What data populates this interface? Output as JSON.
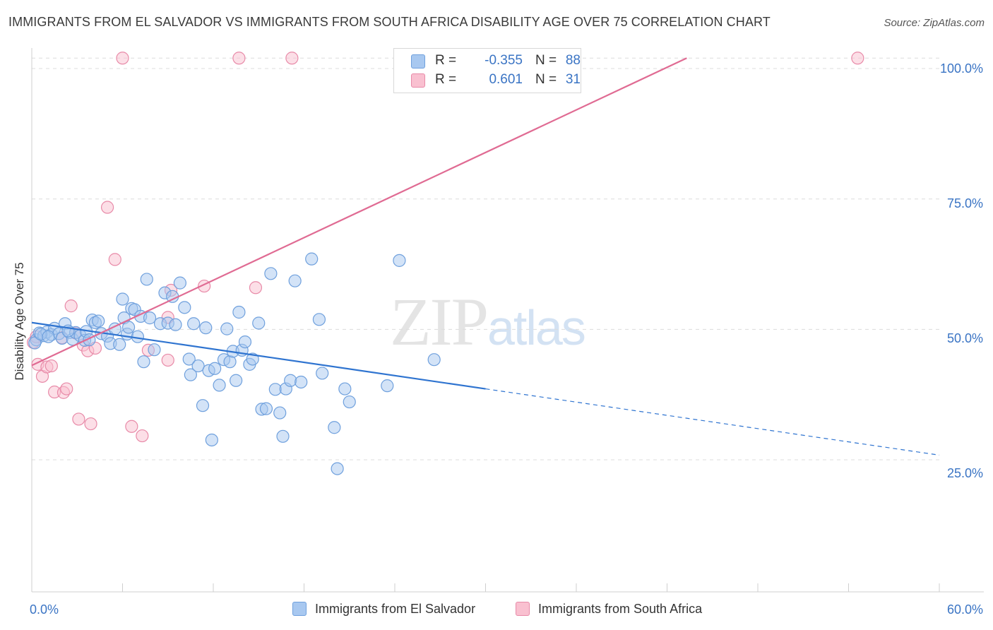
{
  "title": "IMMIGRANTS FROM EL SALVADOR VS IMMIGRANTS FROM SOUTH AFRICA DISABILITY AGE OVER 75 CORRELATION CHART",
  "source": "Source: ZipAtlas.com",
  "watermark": {
    "zip": "ZIP",
    "atlas": "atlas"
  },
  "legend": {
    "rows": [
      {
        "r_label": "R =",
        "r_value": "-0.355",
        "n_label": "N =",
        "n_value": "88",
        "color": "#a8c8f0",
        "border": "#6fa0dd"
      },
      {
        "r_label": "R =",
        "r_value": "0.601",
        "n_label": "N =",
        "n_value": "31",
        "color": "#f9c0d0",
        "border": "#e88aa8"
      }
    ]
  },
  "bottom_legend": [
    {
      "label": "Immigrants from El Salvador",
      "color": "#a8c8f0",
      "border": "#6fa0dd"
    },
    {
      "label": "Immigrants from South Africa",
      "color": "#f9c0d0",
      "border": "#e88aa8"
    }
  ],
  "axis": {
    "x_left_label": "0.0%",
    "x_right_label": "60.0%",
    "y_label": "Disability Age Over 75",
    "y_ticks": [
      "100.0%",
      "75.0%",
      "50.0%",
      "25.0%"
    ]
  },
  "chart_data": {
    "type": "scatter",
    "title": "IMMIGRANTS FROM EL SALVADOR VS IMMIGRANTS FROM SOUTH AFRICA DISABILITY AGE OVER 75 CORRELATION CHART",
    "xlabel": "",
    "ylabel": "Disability Age Over 75",
    "xlim": [
      0,
      60
    ],
    "ylim": [
      0,
      102
    ],
    "y_ticks": [
      25,
      50,
      75,
      100
    ],
    "grid": "horizontal dashed",
    "legend_position": "top-center",
    "series": [
      {
        "name": "Immigrants from El Salvador",
        "color": "#6fa0dd",
        "fill": "#a8c8f0",
        "r": -0.355,
        "n": 88,
        "trend": {
          "x0": 0,
          "y0": 51.3,
          "x1": 30,
          "y1": 38.6,
          "dashed_to_x": 60,
          "dashed_to_y": 25.9
        },
        "points": [
          [
            0.3,
            48.0
          ],
          [
            0.5,
            49.3
          ],
          [
            0.8,
            48.8
          ],
          [
            1.0,
            49.5
          ],
          [
            1.3,
            49.0
          ],
          [
            1.5,
            50.2
          ],
          [
            1.8,
            49.2
          ],
          [
            2.0,
            48.3
          ],
          [
            2.2,
            51.1
          ],
          [
            2.5,
            49.4
          ],
          [
            2.7,
            48.1
          ],
          [
            2.9,
            49.4
          ],
          [
            3.2,
            48.8
          ],
          [
            3.5,
            47.9
          ],
          [
            3.6,
            49.6
          ],
          [
            3.8,
            48.0
          ],
          [
            4.0,
            51.8
          ],
          [
            4.2,
            51.3
          ],
          [
            4.4,
            51.6
          ],
          [
            4.6,
            49.2
          ],
          [
            5.0,
            48.7
          ],
          [
            5.2,
            47.3
          ],
          [
            5.5,
            50.1
          ],
          [
            5.8,
            47.1
          ],
          [
            6.0,
            55.8
          ],
          [
            6.1,
            52.2
          ],
          [
            6.3,
            49.1
          ],
          [
            6.4,
            50.4
          ],
          [
            6.6,
            54.0
          ],
          [
            6.8,
            53.8
          ],
          [
            7.0,
            48.6
          ],
          [
            7.2,
            52.5
          ],
          [
            7.4,
            43.8
          ],
          [
            7.6,
            59.6
          ],
          [
            7.8,
            52.2
          ],
          [
            8.1,
            46.1
          ],
          [
            8.5,
            51.1
          ],
          [
            8.8,
            57.0
          ],
          [
            9.0,
            51.2
          ],
          [
            9.3,
            56.3
          ],
          [
            9.5,
            50.9
          ],
          [
            9.8,
            58.9
          ],
          [
            10.1,
            54.2
          ],
          [
            10.4,
            44.3
          ],
          [
            10.5,
            41.3
          ],
          [
            10.7,
            51.1
          ],
          [
            11.0,
            43.0
          ],
          [
            11.3,
            35.4
          ],
          [
            11.5,
            50.3
          ],
          [
            11.7,
            42.1
          ],
          [
            11.9,
            28.8
          ],
          [
            12.1,
            42.5
          ],
          [
            12.4,
            39.3
          ],
          [
            12.7,
            44.2
          ],
          [
            12.9,
            50.1
          ],
          [
            13.1,
            43.8
          ],
          [
            13.3,
            45.8
          ],
          [
            13.5,
            40.2
          ],
          [
            13.7,
            53.3
          ],
          [
            13.9,
            46.0
          ],
          [
            14.1,
            47.6
          ],
          [
            14.4,
            43.3
          ],
          [
            14.6,
            44.3
          ],
          [
            15.0,
            51.2
          ],
          [
            15.2,
            34.7
          ],
          [
            15.5,
            34.8
          ],
          [
            15.8,
            60.7
          ],
          [
            16.1,
            38.5
          ],
          [
            16.4,
            34.0
          ],
          [
            16.6,
            29.5
          ],
          [
            16.8,
            38.6
          ],
          [
            17.1,
            40.2
          ],
          [
            17.4,
            59.3
          ],
          [
            17.8,
            39.9
          ],
          [
            18.5,
            63.5
          ],
          [
            19.0,
            51.9
          ],
          [
            19.2,
            41.6
          ],
          [
            20.0,
            31.2
          ],
          [
            20.2,
            23.3
          ],
          [
            20.7,
            38.6
          ],
          [
            21.0,
            36.1
          ],
          [
            23.5,
            39.2
          ],
          [
            24.3,
            63.2
          ],
          [
            26.6,
            44.2
          ],
          [
            0.2,
            47.4
          ],
          [
            0.6,
            49.1
          ],
          [
            1.1,
            48.6
          ],
          [
            2.4,
            49.7
          ]
        ]
      },
      {
        "name": "Immigrants from South Africa",
        "color": "#e88aa8",
        "fill": "#f9c0d0",
        "r": 0.601,
        "n": 31,
        "trend": {
          "x0": 0,
          "y0": 43.1,
          "x1": 43.3,
          "y1": 102
        },
        "points": [
          [
            0.1,
            47.5
          ],
          [
            0.4,
            43.3
          ],
          [
            0.7,
            41.0
          ],
          [
            1.0,
            42.8
          ],
          [
            1.3,
            43.0
          ],
          [
            1.5,
            38.0
          ],
          [
            2.0,
            48.4
          ],
          [
            2.1,
            37.9
          ],
          [
            2.3,
            38.6
          ],
          [
            2.6,
            54.5
          ],
          [
            2.9,
            49.3
          ],
          [
            3.1,
            32.8
          ],
          [
            3.4,
            47.0
          ],
          [
            3.7,
            45.9
          ],
          [
            3.9,
            31.9
          ],
          [
            4.2,
            46.4
          ],
          [
            5.0,
            73.4
          ],
          [
            5.5,
            63.4
          ],
          [
            6.0,
            102.0
          ],
          [
            6.6,
            31.4
          ],
          [
            7.3,
            29.6
          ],
          [
            7.7,
            46.0
          ],
          [
            9.0,
            44.1
          ],
          [
            9.0,
            52.3
          ],
          [
            9.2,
            57.5
          ],
          [
            11.4,
            58.3
          ],
          [
            13.7,
            102.0
          ],
          [
            14.8,
            58.0
          ],
          [
            17.2,
            102.0
          ],
          [
            54.6,
            102.0
          ],
          [
            0.3,
            48.6
          ]
        ]
      }
    ]
  }
}
